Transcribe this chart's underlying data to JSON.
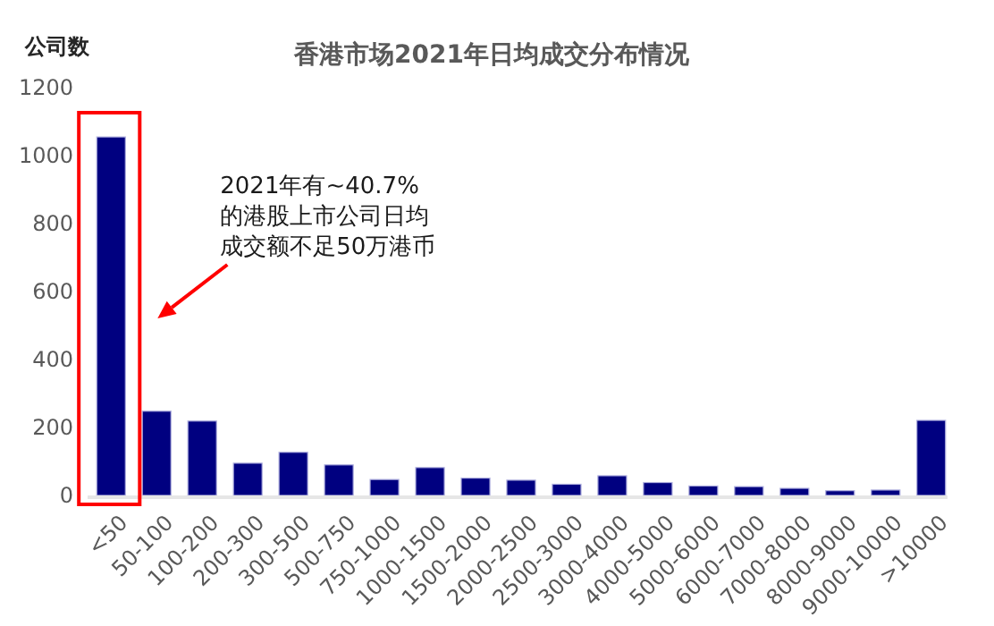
{
  "chart_data": {
    "type": "bar",
    "title": "香港市场2021年日均成交分布情况",
    "ylabel": "公司数",
    "categories": [
      "<50",
      "50-100",
      "100-200",
      "200-300",
      "300-500",
      "500-750",
      "750-1000",
      "1000-1500",
      "1500-2000",
      "2000-2500",
      "2500-3000",
      "3000-4000",
      "4000-5000",
      "5000-6000",
      "6000-7000",
      "7000-8000",
      "8000-9000",
      "9000-10000",
      ">10000"
    ],
    "values": [
      1055,
      248,
      219,
      95,
      127,
      90,
      47,
      82,
      51,
      45,
      33,
      58,
      38,
      28,
      26,
      21,
      14,
      16,
      221
    ],
    "color": "#000080",
    "ylim": [
      0,
      1200
    ],
    "yticks": [
      0,
      200,
      400,
      600,
      800,
      1000,
      1200
    ],
    "annotations": [
      "2021年有~40.7%的港股上市公司日均成交额不足50万港币"
    ]
  }
}
